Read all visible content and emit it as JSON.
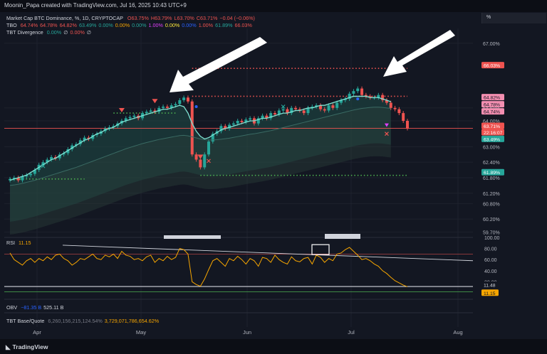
{
  "header": {
    "caption": "Moonin_Papa created with TradingView.com, Jul 16, 2025 10:43 UTC+9"
  },
  "legend": {
    "title": "Market Cap BTC Dominance, %, 1D, CRYPTOCAP",
    "ohlc": [
      {
        "label": "O",
        "value": "63.75%",
        "color": "#ef5350"
      },
      {
        "label": "H",
        "value": "63.79%",
        "color": "#ef5350"
      },
      {
        "label": "L",
        "value": "63.70%",
        "color": "#ef5350"
      },
      {
        "label": "C",
        "value": "63.71%",
        "color": "#ef5350"
      },
      {
        "label": "",
        "value": "−0.04 (−0.06%)",
        "color": "#ef5350"
      }
    ],
    "tbo_label": "TBO",
    "tbo_values": [
      {
        "v": "64.74%",
        "c": "#ef5350"
      },
      {
        "v": "64.78%",
        "c": "#ef5350"
      },
      {
        "v": "64.82%",
        "c": "#ef5350"
      },
      {
        "v": "63.49%",
        "c": "#26a69a"
      },
      {
        "v": "0.00%",
        "c": "#26a69a"
      },
      {
        "v": "0.00%",
        "c": "#f7a600"
      },
      {
        "v": "0.00%",
        "c": "#26a69a"
      },
      {
        "v": "1.00%",
        "c": "#e040fb"
      },
      {
        "v": "0.00%",
        "c": "#ffeb3b"
      },
      {
        "v": "0.00%",
        "c": "#2962ff"
      },
      {
        "v": "1.00%",
        "c": "#ef5350"
      },
      {
        "v": "61.89%",
        "c": "#26a69a"
      },
      {
        "v": "66.03%",
        "c": "#ef5350"
      }
    ],
    "div_label": "TBT Divergence",
    "div_values": [
      {
        "v": "0.00%",
        "c": "#26a69a"
      },
      {
        "v": "∅",
        "c": "#d1d4dc"
      },
      {
        "v": "0.00%",
        "c": "#ef5350"
      },
      {
        "v": "∅",
        "c": "#d1d4dc"
      }
    ],
    "rsi_label": "RSI",
    "rsi_value": "11.15",
    "obv_label": "OBV",
    "obv_values": [
      {
        "v": "−81.35 B",
        "c": "#2962ff"
      },
      {
        "v": "525.11 B",
        "c": "#d1d4dc"
      }
    ],
    "tbt_label": "TBT Base/Quote",
    "tbt_values": [
      {
        "v": "6,260,156,215,124.54%",
        "c": "#787b86"
      },
      {
        "v": "3,729,071,786,654.62%",
        "c": "#f7a600"
      }
    ]
  },
  "percent_box": "%",
  "footer": {
    "brand": "TradingView"
  },
  "chart_data": [
    {
      "type": "candlestick",
      "title": "Market Cap BTC Dominance, %, 1D, CRYPTOCAP",
      "ylim": [
        59.6,
        67.3
      ],
      "y_ticks": [
        "67.00%",
        "64.50%",
        "64.00%",
        "63.00%",
        "62.40%",
        "61.80%",
        "61.20%",
        "60.80%",
        "60.20%",
        "59.70%"
      ],
      "x_ticks": [
        "Apr",
        "May",
        "Jun",
        "Jul",
        "Aug"
      ],
      "ohlc_close": [
        61.75,
        61.8,
        61.7,
        61.85,
        61.9,
        61.95,
        62.1,
        62.3,
        62.4,
        62.5,
        62.6,
        62.55,
        62.7,
        62.75,
        62.9,
        63.05,
        63.1,
        63.25,
        63.35,
        63.3,
        63.45,
        63.5,
        63.6,
        63.7,
        63.75,
        63.8,
        63.9,
        64.0,
        64.1,
        64.15,
        64.2,
        64.1,
        64.3,
        64.35,
        64.4,
        64.35,
        64.5,
        64.55,
        64.5,
        64.6,
        64.65,
        64.8,
        64.9,
        64.75,
        62.7,
        62.5,
        62.2,
        62.7,
        63.2,
        63.5,
        63.6,
        63.8,
        63.7,
        63.85,
        63.9,
        64.0,
        63.95,
        64.05,
        64.1,
        63.9,
        64.1,
        64.2,
        64.1,
        64.3,
        64.25,
        64.4,
        64.45,
        64.3,
        64.5,
        64.45,
        64.4,
        64.3,
        64.5,
        64.55,
        64.6,
        64.45,
        64.4,
        64.6,
        64.5,
        64.7,
        64.8,
        64.85,
        65.05,
        65.15,
        65.25,
        65.0,
        64.95,
        64.9,
        64.9,
        65.0,
        64.8,
        64.7,
        64.5,
        64.45,
        64.3,
        64.0,
        63.71
      ],
      "series": [
        {
          "name": "TBO fast",
          "values": [
            61.7,
            61.75,
            61.8,
            61.85,
            61.9,
            62.0,
            62.1,
            62.2,
            62.3,
            62.4,
            62.5,
            62.55,
            62.65,
            62.75,
            62.85,
            62.95,
            63.05,
            63.15,
            63.25,
            63.3,
            63.4,
            63.5,
            63.55,
            63.65,
            63.7,
            63.75,
            63.85,
            63.95,
            64.0,
            64.05,
            64.1,
            64.15,
            64.2,
            64.25,
            64.3,
            64.35,
            64.4,
            64.45,
            64.45,
            64.5,
            64.55,
            64.6,
            64.55,
            64.3,
            63.9,
            63.6,
            63.4,
            63.3,
            63.35,
            63.45,
            63.55,
            63.65,
            63.7,
            63.75,
            63.8,
            63.85,
            63.9,
            63.95,
            64.0,
            64.0,
            64.05,
            64.1,
            64.1,
            64.15,
            64.2,
            64.25,
            64.3,
            64.3,
            64.35,
            64.4,
            64.4,
            64.45,
            64.5,
            64.5,
            64.55,
            64.6,
            64.6,
            64.65,
            64.7,
            64.75,
            64.8,
            64.85,
            64.9,
            64.95,
            64.95,
            64.95,
            64.95,
            64.9,
            64.9,
            64.9,
            64.85,
            64.8,
            64.74
          ]
        },
        {
          "name": "TBO slow",
          "values": [
            61.5,
            61.52,
            61.55,
            61.58,
            61.62,
            61.66,
            61.7,
            61.75,
            61.8,
            61.85,
            61.9,
            61.95,
            62.0,
            62.05,
            62.1,
            62.15,
            62.2,
            62.26,
            62.32,
            62.38,
            62.44,
            62.5,
            62.56,
            62.62,
            62.68,
            62.74,
            62.8,
            62.86,
            62.92,
            62.97,
            63.02,
            63.07,
            63.12,
            63.16,
            63.2,
            63.24,
            63.28,
            63.31,
            63.34,
            63.37,
            63.4,
            63.43,
            63.44,
            63.42,
            63.38,
            63.34,
            63.3,
            63.27,
            63.26,
            63.26,
            63.27,
            63.29,
            63.31,
            63.33,
            63.36,
            63.39,
            63.42,
            63.45,
            63.48,
            63.5,
            63.53,
            63.56,
            63.59,
            63.62,
            63.66,
            63.7,
            63.74,
            63.78,
            63.82,
            63.86,
            63.9,
            63.94,
            63.98,
            64.02,
            64.06,
            64.1,
            64.14,
            64.18,
            64.22,
            64.26,
            64.3,
            64.34,
            64.38,
            64.42,
            64.45,
            64.48,
            64.5,
            64.52,
            64.53,
            64.53,
            64.52,
            64.5,
            64.48
          ]
        }
      ],
      "levels": [
        {
          "name": "resistance",
          "value": 66.03,
          "label": "66.03%"
        },
        {
          "name": "support",
          "value": 61.89,
          "label": "61.89%"
        }
      ],
      "price_tags": [
        {
          "v": "64.82%",
          "bg": "#f48fb1",
          "fg": "#131722"
        },
        {
          "v": "64.78%",
          "bg": "#f48fb1",
          "fg": "#131722"
        },
        {
          "v": "64.74%",
          "bg": "#f48fb1",
          "fg": "#131722"
        },
        {
          "v": "63.71%",
          "bg": "#ef5350",
          "fg": "#ffffff"
        },
        {
          "v": "22:16:07",
          "bg": "#ef5350",
          "fg": "#ffffff"
        },
        {
          "v": "63.49%",
          "bg": "#26a69a",
          "fg": "#ffffff"
        },
        {
          "v": "66.03%",
          "bg": "#ef5350",
          "fg": "#ffffff"
        },
        {
          "v": "61.89%",
          "bg": "#26a69a",
          "fg": "#ffffff"
        }
      ]
    },
    {
      "type": "line",
      "title": "RSI",
      "ylim": [
        0,
        100
      ],
      "y_ticks": [
        "100.00",
        "80.00",
        "60.00",
        "40.00",
        "20.00"
      ],
      "levels": [
        {
          "value": 70
        },
        {
          "value": 30
        }
      ],
      "values": [
        72,
        60,
        55,
        50,
        58,
        62,
        55,
        62,
        58,
        65,
        60,
        68,
        70,
        62,
        58,
        50,
        55,
        62,
        60,
        65,
        70,
        62,
        60,
        68,
        65,
        70,
        62,
        75,
        68,
        66,
        60,
        62,
        58,
        65,
        68,
        55,
        62,
        58,
        66,
        60,
        64,
        80,
        78,
        70,
        20,
        15,
        12,
        25,
        42,
        58,
        62,
        55,
        48,
        62,
        58,
        66,
        60,
        52,
        62,
        58,
        48,
        64,
        62,
        55,
        68,
        60,
        55,
        52,
        65,
        58,
        56,
        62,
        64,
        52,
        68,
        64,
        55,
        62,
        58,
        70,
        72,
        78,
        82,
        75,
        68,
        60,
        62,
        58,
        52,
        48,
        40,
        35,
        28,
        22,
        18,
        14,
        11.15
      ],
      "tags": [
        {
          "v": "11.48",
          "bg": "#131722",
          "fg": "#d1d4dc"
        },
        {
          "v": "11.15",
          "bg": "#f7a600",
          "fg": "#131722"
        }
      ]
    }
  ]
}
